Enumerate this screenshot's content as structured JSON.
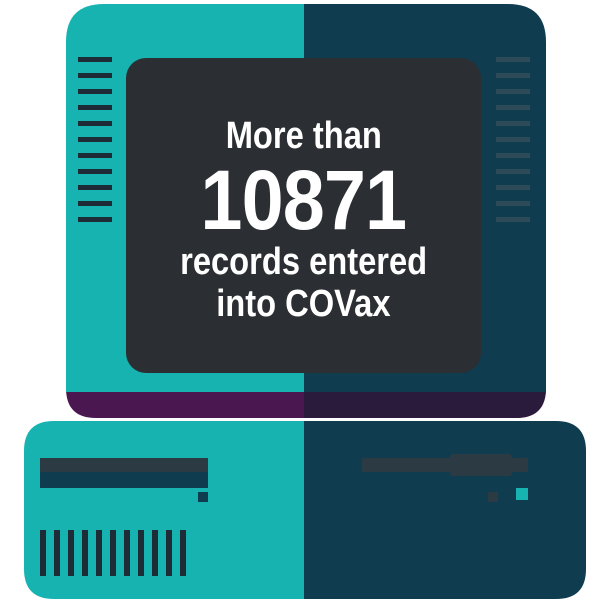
{
  "illustration": {
    "headline_top": "More than",
    "headline_number": "10871",
    "headline_line3": "records entered",
    "headline_line4": "into COVax"
  },
  "colors": {
    "teal_light": "#17b3b0",
    "teal_dark": "#0f3d4f",
    "screen": "#2b2f33",
    "base_purple_light": "#4a1750",
    "base_purple_dark": "#2a1a3c",
    "slot_dark": "#2c3a44",
    "vent": "#1d2c36"
  }
}
